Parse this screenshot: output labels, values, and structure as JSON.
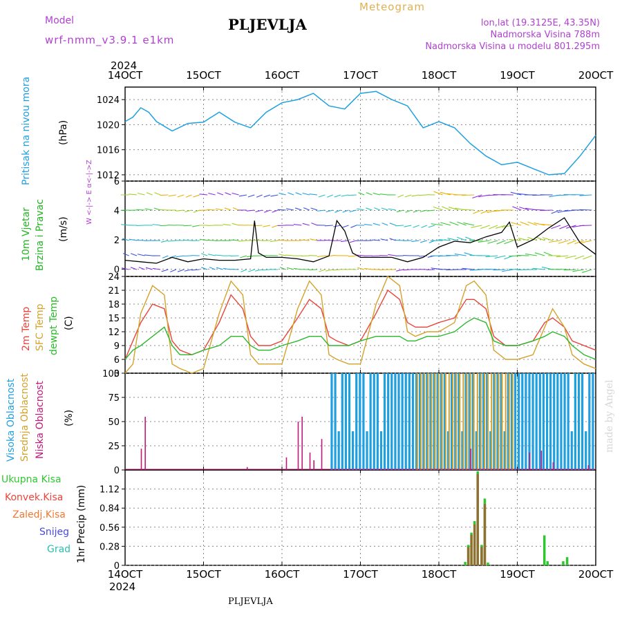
{
  "header": {
    "model_label": "Model",
    "model_name": "wrf-nmm_v3.9.1 e1km",
    "station": "PLJEVLJA",
    "product": "Meteogram",
    "location_line1": "lon,lat (19.3125E, 43.35N)",
    "location_line2": "Nadmorska Visina 788m",
    "location_line3": "Nadmorska Visina u modelu 801.295m",
    "footer_station": "PLJEVLJA",
    "watermark": "made by Angel",
    "year_top": "2024",
    "year_bottom": "2024"
  },
  "colors": {
    "pressure": "#1e9fe0",
    "temp2m": "#e8443a",
    "sfc": "#d4a22a",
    "dew": "#2ab82a",
    "high_cloud": "#1e9fe0",
    "mid_cloud": "#d4a22a",
    "low_cloud": "#c0187a",
    "precip_total": "#2ec82e",
    "precip_conv": "#e8443a",
    "precip_frz": "#f07830",
    "snow": "#4848e0",
    "graupel": "#28c0b0",
    "wind_label": "#22b422",
    "wind_axis_label": "#b040d0"
  },
  "x_axis": {
    "tick_labels": [
      "14OCT",
      "15OCT",
      "16OCT",
      "17OCT",
      "18OCT",
      "19OCT",
      "20OCT"
    ]
  },
  "chart_data": [
    {
      "type": "line",
      "id": "pressure",
      "ylabel": "Pritisak na nivou mora",
      "unit": "(hPa)",
      "ylim": [
        1011,
        1026
      ],
      "yticks": [
        1012,
        1016,
        1020,
        1024
      ],
      "grid": true,
      "x_days": [
        0,
        0.1,
        0.2,
        0.3,
        0.4,
        0.6,
        0.8,
        1.0,
        1.2,
        1.4,
        1.6,
        1.8,
        2.0,
        2.2,
        2.4,
        2.6,
        2.8,
        3.0,
        3.2,
        3.4,
        3.6,
        3.8,
        4.0,
        4.2,
        4.4,
        4.6,
        4.8,
        5.0,
        5.2,
        5.4,
        5.6,
        5.8,
        6.0
      ],
      "series": [
        {
          "values": [
            1020.5,
            1021.2,
            1022.7,
            1022.0,
            1020.5,
            1019.0,
            1020.2,
            1020.4,
            1022.0,
            1020.4,
            1019.5,
            1022.0,
            1023.5,
            1024.0,
            1025.0,
            1023.0,
            1022.5,
            1025.0,
            1025.3,
            1024.0,
            1023.0,
            1019.5,
            1020.5,
            1019.5,
            1017.0,
            1015.0,
            1013.6,
            1014.0,
            1013.0,
            1012.0,
            1012.2,
            1015.0,
            1018.3
          ]
        }
      ]
    },
    {
      "type": "line",
      "id": "wind",
      "ylabel": "10m Vjetar Brzina i Pravac",
      "unit": "(m/s)",
      "axis_label": "W <-|-> E  α<-|->Z",
      "ylim": [
        -0.5,
        6
      ],
      "yticks": [
        0,
        2,
        4,
        6
      ],
      "grid": true,
      "x_days": [
        0,
        0.2,
        0.4,
        0.6,
        0.8,
        1.0,
        1.2,
        1.4,
        1.6,
        1.65,
        1.7,
        1.8,
        2.0,
        2.2,
        2.4,
        2.6,
        2.7,
        2.8,
        2.9,
        3.0,
        3.2,
        3.4,
        3.6,
        3.8,
        4.0,
        4.2,
        4.4,
        4.6,
        4.8,
        4.9,
        5.0,
        5.2,
        5.4,
        5.6,
        5.8,
        6.0
      ],
      "series": [
        {
          "name": "speed",
          "values": [
            0.6,
            0.5,
            0.4,
            0.8,
            0.5,
            0.7,
            0.6,
            0.6,
            0.7,
            3.3,
            1.1,
            0.8,
            0.8,
            0.7,
            0.5,
            0.9,
            3.3,
            2.6,
            1.1,
            0.8,
            0.8,
            0.8,
            0.5,
            0.8,
            1.5,
            1.9,
            1.8,
            2.2,
            2.5,
            3.2,
            1.5,
            2.0,
            2.8,
            3.5,
            1.8,
            1.0
          ]
        }
      ]
    },
    {
      "type": "line",
      "id": "temperature",
      "ylabels": [
        "2m Temp",
        "SFC Temp",
        "dewpt Temp"
      ],
      "unit": "(C)",
      "ylim": [
        3,
        24
      ],
      "yticks": [
        3,
        6,
        9,
        12,
        15,
        18,
        21,
        24
      ],
      "grid": true,
      "x_days": [
        0,
        0.1,
        0.2,
        0.35,
        0.5,
        0.6,
        0.7,
        0.85,
        1.0,
        1.2,
        1.35,
        1.5,
        1.6,
        1.7,
        1.85,
        2.0,
        2.2,
        2.35,
        2.5,
        2.6,
        2.7,
        2.85,
        3.0,
        3.2,
        3.35,
        3.5,
        3.6,
        3.7,
        3.85,
        4.0,
        4.2,
        4.35,
        4.45,
        4.6,
        4.7,
        4.85,
        5.0,
        5.2,
        5.35,
        5.45,
        5.6,
        5.7,
        5.85,
        6.0
      ],
      "series": [
        {
          "name": "2m Temp",
          "values": [
            6,
            10,
            14,
            18,
            17,
            10,
            8,
            7,
            8,
            14,
            20,
            17,
            11,
            9,
            9,
            10,
            15,
            19,
            17,
            11,
            10,
            9,
            10,
            16,
            21,
            19,
            14,
            13,
            13,
            14,
            15,
            19,
            19,
            17,
            11,
            9,
            9,
            10,
            14,
            15,
            13,
            10,
            9,
            8
          ]
        },
        {
          "name": "SFC Temp",
          "values": [
            3,
            5,
            16,
            22,
            20,
            5,
            4,
            3,
            4,
            16,
            23,
            20,
            7,
            5,
            5,
            5,
            17,
            23,
            20,
            7,
            6,
            5,
            5,
            18,
            24,
            22,
            12,
            11,
            12,
            12,
            14,
            22,
            23,
            20,
            8,
            6,
            6,
            7,
            13,
            17,
            13,
            7,
            5,
            4
          ]
        },
        {
          "name": "dewpt Temp",
          "values": [
            6,
            8,
            9,
            11,
            13,
            9,
            7,
            7,
            8,
            9,
            11,
            11,
            9,
            8,
            8,
            9,
            10,
            11,
            11,
            9,
            9,
            9,
            10,
            11,
            11,
            11,
            10,
            10,
            11,
            11,
            12,
            14,
            15,
            14,
            10,
            9,
            9,
            10,
            11,
            12,
            11,
            9,
            7,
            6
          ]
        }
      ]
    },
    {
      "type": "bar",
      "id": "clouds",
      "ylabels": [
        "Visoka Oblacnost",
        "Srednja Oblacnost",
        "Niska Oblacnost"
      ],
      "unit": "(%)",
      "ylim": [
        0,
        100
      ],
      "yticks": [
        0,
        25,
        50,
        75,
        100
      ],
      "grid": true,
      "series": [
        {
          "name": "Niska Oblacnost",
          "points": [
            [
              0.2,
              22
            ],
            [
              0.25,
              55
            ],
            [
              1.55,
              3
            ],
            [
              2.05,
              13
            ],
            [
              2.2,
              50
            ],
            [
              2.25,
              55
            ],
            [
              2.35,
              18
            ],
            [
              2.4,
              10
            ],
            [
              2.5,
              32
            ],
            [
              4.4,
              22
            ],
            [
              5.15,
              18
            ],
            [
              5.3,
              20
            ],
            [
              5.45,
              8
            ],
            [
              5.9,
              5
            ]
          ]
        },
        {
          "name": "Visoka Oblacnost",
          "ranges": [
            [
              2.62,
              5.95,
              100
            ]
          ]
        },
        {
          "name": "Srednja Oblacnost",
          "ranges": [
            [
              3.7,
              4.95,
              100
            ]
          ]
        }
      ]
    },
    {
      "type": "bar",
      "id": "precip",
      "ylabel": "1hr Precip",
      "unit": "(mm)",
      "legend": [
        "Ukupna Kisa",
        "Konvek.Kisa",
        "Zaledj.Kisa",
        "Snijeg",
        "Grad"
      ],
      "ylim": [
        0,
        1.4
      ],
      "yticks": [
        0,
        0.28,
        0.56,
        0.84,
        1.12
      ],
      "grid": true,
      "series": [
        {
          "name": "Ukupna Kisa",
          "points": [
            [
              4.32,
              0.05
            ],
            [
              4.36,
              0.3
            ],
            [
              4.4,
              0.48
            ],
            [
              4.44,
              0.65
            ],
            [
              4.48,
              1.38
            ],
            [
              4.53,
              0.3
            ],
            [
              4.57,
              0.98
            ],
            [
              4.61,
              0.04
            ],
            [
              5.33,
              0.44
            ],
            [
              5.37,
              0.06
            ],
            [
              5.57,
              0.06
            ],
            [
              5.62,
              0.12
            ]
          ]
        },
        {
          "name": "Konvek.Kisa",
          "points": [
            [
              4.36,
              0.27
            ],
            [
              4.4,
              0.45
            ],
            [
              4.44,
              0.6
            ],
            [
              4.48,
              1.34
            ],
            [
              4.53,
              0.27
            ],
            [
              4.57,
              0.9
            ]
          ]
        }
      ]
    }
  ]
}
